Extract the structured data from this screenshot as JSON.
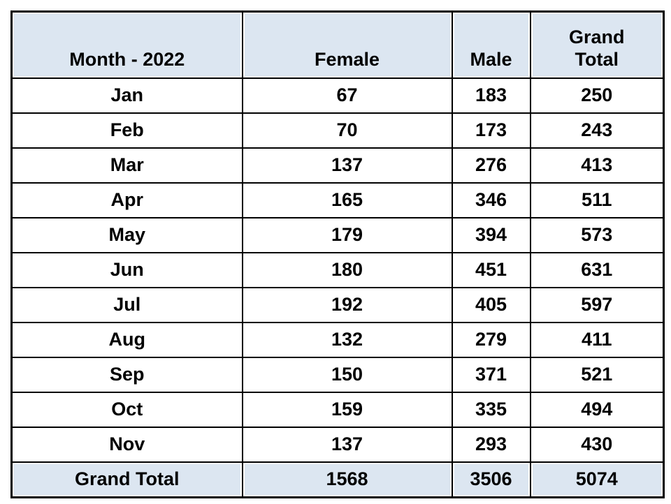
{
  "colors": {
    "page_bg": "#ffffff",
    "header_bg": "#dce6f1",
    "total_row_bg": "#dce6f1",
    "border": "#000000",
    "text": "#000000"
  },
  "chart_data": {
    "type": "table",
    "columns": [
      "Month - 2022",
      "Female",
      "Male",
      "Grand Total"
    ],
    "rows": [
      [
        "Jan",
        "67",
        "183",
        "250"
      ],
      [
        "Feb",
        "70",
        "173",
        "243"
      ],
      [
        "Mar",
        "137",
        "276",
        "413"
      ],
      [
        "Apr",
        "165",
        "346",
        "511"
      ],
      [
        "May",
        "179",
        "394",
        "573"
      ],
      [
        "Jun",
        "180",
        "451",
        "631"
      ],
      [
        "Jul",
        "192",
        "405",
        "597"
      ],
      [
        "Aug",
        "132",
        "279",
        "411"
      ],
      [
        "Sep",
        "150",
        "371",
        "521"
      ],
      [
        "Oct",
        "159",
        "335",
        "494"
      ],
      [
        "Nov",
        "137",
        "293",
        "430"
      ]
    ],
    "totals": [
      "Grand Total",
      "1568",
      "3506",
      "5074"
    ]
  }
}
